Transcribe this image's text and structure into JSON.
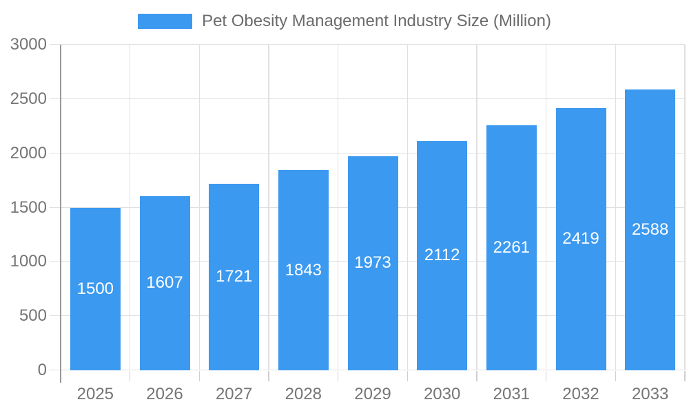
{
  "chart_data": {
    "type": "bar",
    "title": "Pet Obesity Management Industry Size (Million)",
    "legend": {
      "label": "Pet Obesity Management Industry Size (Million)",
      "position": "top"
    },
    "categories": [
      "2025",
      "2026",
      "2027",
      "2028",
      "2029",
      "2030",
      "2031",
      "2032",
      "2033"
    ],
    "series": [
      {
        "name": "Pet Obesity Management Industry Size (Million)",
        "values": [
          1500,
          1607,
          1721,
          1843,
          1973,
          2112,
          2261,
          2419,
          2588
        ]
      }
    ],
    "value_labels_shown": true,
    "xlabel": "",
    "ylabel": "",
    "ylim": [
      0,
      3000
    ],
    "yticks": [
      0,
      500,
      1000,
      1500,
      2000,
      2500,
      3000
    ],
    "grid": true,
    "colors": {
      "bar": "#3b99f0",
      "value_label": "#ffffff",
      "axis_text": "#757575",
      "legend_text": "#6b6b6b",
      "gridline": "#e0e0e0",
      "boundary_tick": "#cfcfcf",
      "axis_line": "#999999",
      "background": "#ffffff"
    }
  }
}
